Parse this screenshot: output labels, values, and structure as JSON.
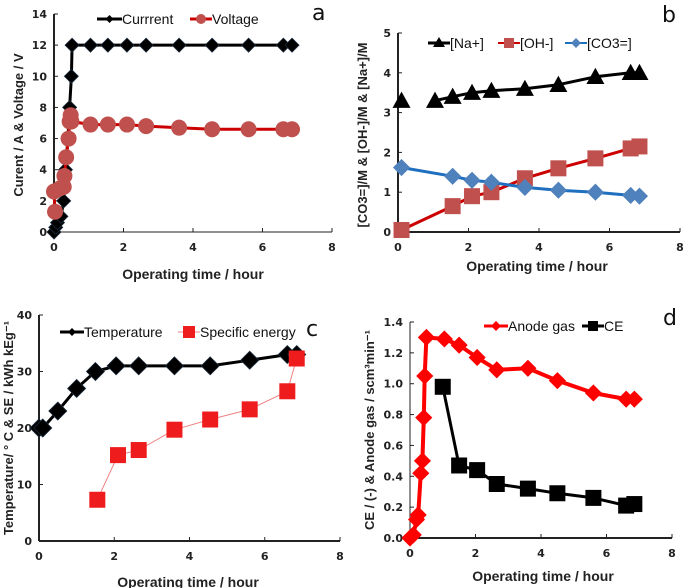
{
  "chart_data": [
    {
      "panel": "a",
      "type": "line",
      "title": "",
      "xlabel": "Operating time  /  hour",
      "ylabel": "Curent / A  & Voltage / V",
      "xlim": [
        0,
        8
      ],
      "ylim": [
        0,
        14
      ],
      "xticks": [
        "0",
        "2",
        "4",
        "6",
        "8"
      ],
      "yticks": [
        "0",
        "2",
        "4",
        "6",
        "8",
        "10",
        "12",
        "14"
      ],
      "legend_position": "top",
      "series": [
        {
          "name": "Currrent",
          "color": "#000000",
          "marker": "diamond",
          "x": [
            0.0,
            0.05,
            0.1,
            0.2,
            0.28,
            0.33,
            0.4,
            0.45,
            0.5,
            0.52,
            1.05,
            1.55,
            2.1,
            2.65,
            3.6,
            4.55,
            5.6,
            6.6,
            6.85
          ],
          "y": [
            0.0,
            0.3,
            0.6,
            1.0,
            2.0,
            4.0,
            6.0,
            8.0,
            10.0,
            12.0,
            12.0,
            12.0,
            12.0,
            12.0,
            12.0,
            12.0,
            12.0,
            12.0,
            12.0
          ]
        },
        {
          "name": "Voltage",
          "color": "#c0504d",
          "line_color": "#cc0000",
          "marker": "circle",
          "x": [
            0.03,
            0.0,
            0.17,
            0.28,
            0.3,
            0.35,
            0.42,
            0.45,
            0.48,
            0.5,
            1.05,
            1.55,
            2.1,
            2.65,
            3.6,
            4.55,
            5.6,
            6.6,
            6.85
          ],
          "y": [
            1.3,
            2.6,
            2.8,
            2.9,
            3.6,
            4.8,
            6.0,
            7.1,
            7.5,
            7.1,
            6.9,
            6.9,
            6.9,
            6.8,
            6.7,
            6.6,
            6.6,
            6.6,
            6.6
          ]
        }
      ],
      "panel_label": "a"
    },
    {
      "panel": "b",
      "type": "line",
      "title": "",
      "xlabel": "Operating time  /  hour",
      "ylabel": "[CO3=]/M  &  [OH-]/M  &  [Na+]/M",
      "xlim": [
        0,
        8
      ],
      "ylim": [
        0,
        5
      ],
      "xticks": [
        "0",
        "2",
        "4",
        "6",
        "8"
      ],
      "yticks": [
        "0",
        "1",
        "2",
        "3",
        "4",
        "5"
      ],
      "legend_position": "top",
      "series": [
        {
          "name": "[Na+]",
          "color": "#000000",
          "marker": "triangle",
          "x": [
            0.1,
            1.05,
            1.55,
            2.1,
            2.65,
            3.6,
            4.55,
            5.6,
            6.6,
            6.85
          ],
          "y": [
            3.3,
            3.3,
            3.4,
            3.5,
            3.55,
            3.6,
            3.7,
            3.9,
            4.0,
            4.0
          ],
          "line_from_index": 1
        },
        {
          "name": "[OH-]",
          "color": "#c0504d",
          "line_color": "#cc0000",
          "marker": "square",
          "x": [
            0.1,
            1.55,
            2.1,
            2.65,
            3.6,
            4.55,
            5.6,
            6.6,
            6.85
          ],
          "y": [
            0.05,
            0.65,
            0.9,
            1.0,
            1.35,
            1.6,
            1.85,
            2.1,
            2.15
          ]
        },
        {
          "name": "[CO3=]",
          "color": "#4f81bd",
          "line_color": "#1f6fc0",
          "marker": "diamond",
          "x": [
            0.1,
            1.55,
            2.1,
            2.65,
            3.6,
            4.55,
            5.6,
            6.6,
            6.85
          ],
          "y": [
            1.62,
            1.4,
            1.3,
            1.25,
            1.12,
            1.05,
            1.0,
            0.92,
            0.9
          ]
        }
      ],
      "panel_label": "b"
    },
    {
      "panel": "c",
      "type": "line",
      "title": "",
      "xlabel": "Operating time  /  hour",
      "ylabel": "Temperature/ ° C &  SE / kWh kEg⁻¹",
      "xlim": [
        0,
        8
      ],
      "ylim": [
        0,
        40
      ],
      "xticks": [
        "0",
        "2",
        "4",
        "6",
        "8"
      ],
      "yticks": [
        "0",
        "10",
        "20",
        "30",
        "40"
      ],
      "legend_position": "top",
      "series": [
        {
          "name": "Temperature",
          "color": "#000000",
          "marker": "diamond",
          "x": [
            0.0,
            0.1,
            0.5,
            1.0,
            1.5,
            2.05,
            2.65,
            3.6,
            4.55,
            5.6,
            6.6,
            6.85
          ],
          "y": [
            20,
            20,
            23,
            27,
            30,
            31,
            31,
            31,
            31,
            32,
            33,
            33
          ]
        },
        {
          "name": "Specific energy",
          "color": "#ee1c1c",
          "line_color": "#f08080",
          "marker": "square",
          "x": [
            1.55,
            2.1,
            2.65,
            3.6,
            4.55,
            5.6,
            6.6,
            6.85
          ],
          "y": [
            7.3,
            15.2,
            16.1,
            19.7,
            21.5,
            23.3,
            26.5,
            32.3
          ]
        }
      ],
      "panel_label": "c"
    },
    {
      "panel": "d",
      "type": "line",
      "title": "",
      "xlabel": "Operating time  /  hour",
      "ylabel": "CE / (-)  &  Anode gas / scm³min⁻¹",
      "xlim": [
        0,
        8
      ],
      "ylim": [
        0,
        1.4
      ],
      "xticks": [
        "0",
        "2",
        "4",
        "6",
        "8"
      ],
      "yticks": [
        "0.0",
        "0.2",
        "0.4",
        "0.6",
        "0.8",
        "1.0",
        "1.2",
        "1.4"
      ],
      "legend_position": "top",
      "series": [
        {
          "name": "Anode gas",
          "color": "#ff0000",
          "marker": "diamond",
          "x": [
            0.0,
            0.1,
            0.2,
            0.25,
            0.33,
            0.38,
            0.42,
            0.45,
            0.5,
            1.05,
            1.5,
            2.05,
            2.65,
            3.6,
            4.5,
            5.6,
            6.6,
            6.85
          ],
          "y": [
            0.0,
            0.02,
            0.12,
            0.15,
            0.42,
            0.5,
            0.78,
            1.05,
            1.3,
            1.29,
            1.25,
            1.17,
            1.09,
            1.1,
            1.02,
            0.94,
            0.9,
            0.9
          ]
        },
        {
          "name": "CE",
          "color": "#000000",
          "marker": "square",
          "x": [
            1.0,
            1.5,
            2.05,
            2.65,
            3.6,
            4.5,
            5.6,
            6.6,
            6.85
          ],
          "y": [
            0.98,
            0.47,
            0.44,
            0.35,
            0.32,
            0.29,
            0.26,
            0.21,
            0.22
          ]
        }
      ],
      "panel_label": "d"
    }
  ]
}
